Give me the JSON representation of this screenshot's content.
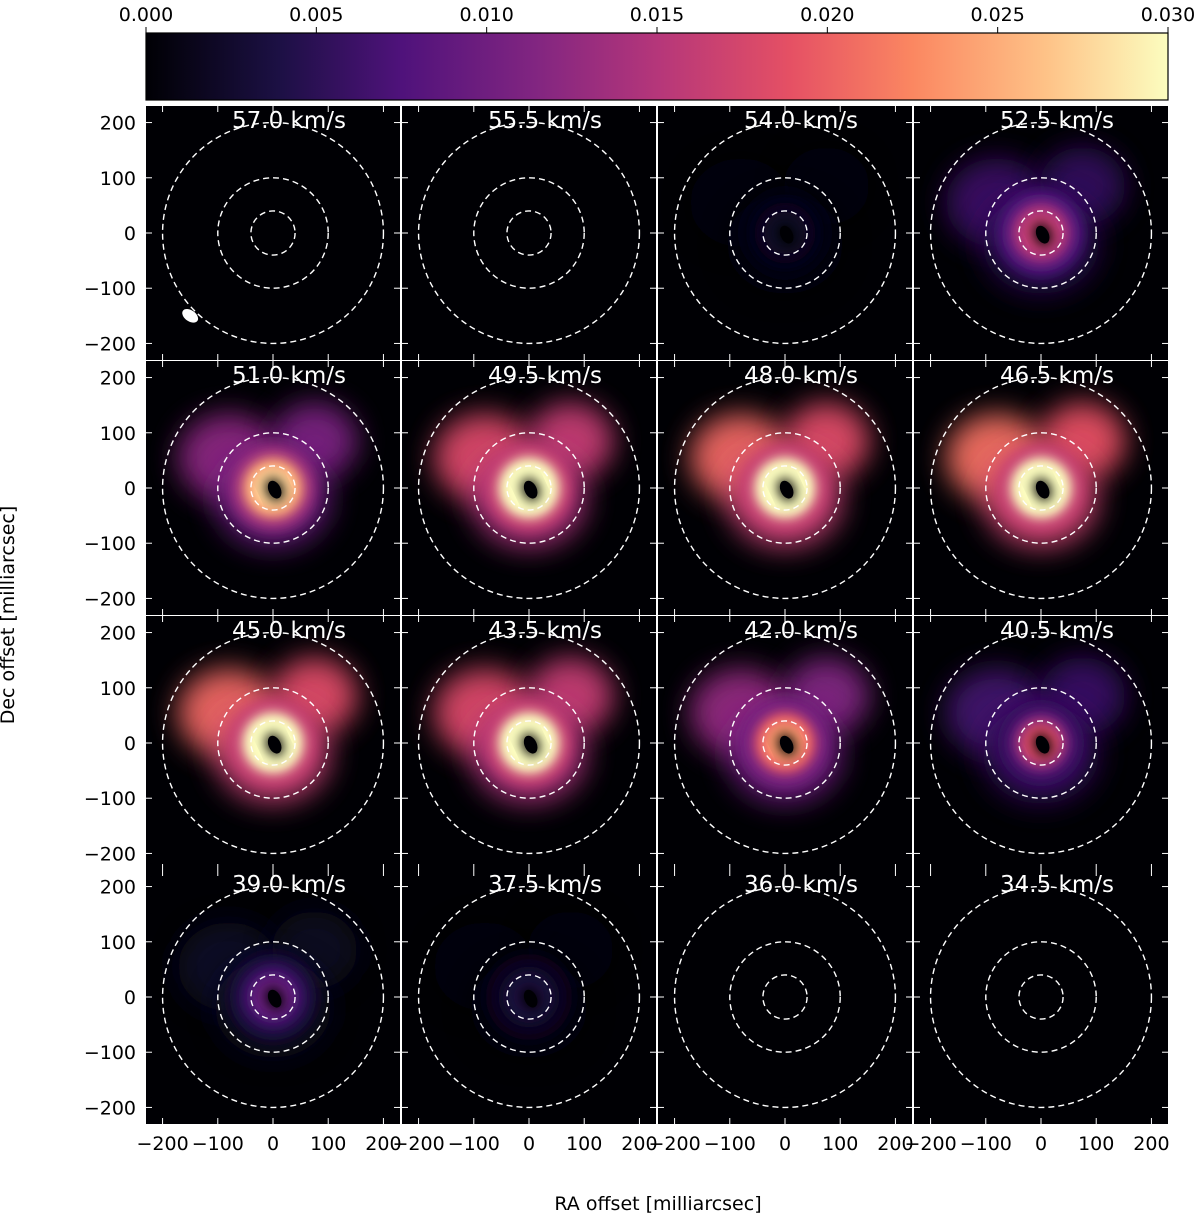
{
  "chart_data": {
    "type": "heatmap",
    "title": "",
    "xlabel": "RA offset [milliarcsec]",
    "ylabel": "Dec offset [milliarcsec]",
    "xlim": [
      -230,
      230
    ],
    "ylim": [
      -230,
      230
    ],
    "xticks": [
      -200,
      -100,
      0,
      100,
      200
    ],
    "yticks": [
      -200,
      -100,
      0,
      100,
      200
    ],
    "colorbar": {
      "range": [
        0.0,
        0.03
      ],
      "ticks": [
        "0.000",
        "0.005",
        "0.010",
        "0.015",
        "0.020",
        "0.025",
        "0.030"
      ],
      "colormap": "magma",
      "placement": "top"
    },
    "reference_circle_radii": [
      40,
      100,
      200
    ],
    "beam": {
      "panel": 0,
      "center": [
        -150,
        -150
      ],
      "major": 32,
      "minor": 20,
      "angle_deg": 35
    },
    "panels": [
      {
        "label": "57.0 km/s",
        "ring": 0.0,
        "ring_max": 0.0,
        "halo": 0.0
      },
      {
        "label": "55.5 km/s",
        "ring": 0.0,
        "ring_max": 0.0,
        "halo": 0.0
      },
      {
        "label": "54.0 km/s",
        "ring": 0.05,
        "ring_max": 0.07,
        "halo": 0.02
      },
      {
        "label": "52.5 km/s",
        "ring": 0.45,
        "ring_max": 0.55,
        "halo": 0.2
      },
      {
        "label": "51.0 km/s",
        "ring": 0.8,
        "ring_max": 0.92,
        "halo": 0.4
      },
      {
        "label": "49.5 km/s",
        "ring": 1.0,
        "ring_max": 1.0,
        "halo": 0.6
      },
      {
        "label": "48.0 km/s",
        "ring": 1.0,
        "ring_max": 1.0,
        "halo": 0.68
      },
      {
        "label": "46.5 km/s",
        "ring": 1.0,
        "ring_max": 1.0,
        "halo": 0.7
      },
      {
        "label": "45.0 km/s",
        "ring": 1.0,
        "ring_max": 1.0,
        "halo": 0.68
      },
      {
        "label": "43.5 km/s",
        "ring": 1.0,
        "ring_max": 1.0,
        "halo": 0.6
      },
      {
        "label": "42.0 km/s",
        "ring": 0.65,
        "ring_max": 0.8,
        "halo": 0.42
      },
      {
        "label": "40.5 km/s",
        "ring": 0.35,
        "ring_max": 0.62,
        "halo": 0.22
      },
      {
        "label": "39.0 km/s",
        "ring": 0.22,
        "ring_max": 0.32,
        "halo": 0.07
      },
      {
        "label": "37.5 km/s",
        "ring": 0.08,
        "ring_max": 0.12,
        "halo": 0.02
      },
      {
        "label": "36.0 km/s",
        "ring": 0.0,
        "ring_max": 0.0,
        "halo": 0.0
      },
      {
        "label": "34.5 km/s",
        "ring": 0.0,
        "ring_max": 0.0,
        "halo": 0.0
      }
    ]
  }
}
